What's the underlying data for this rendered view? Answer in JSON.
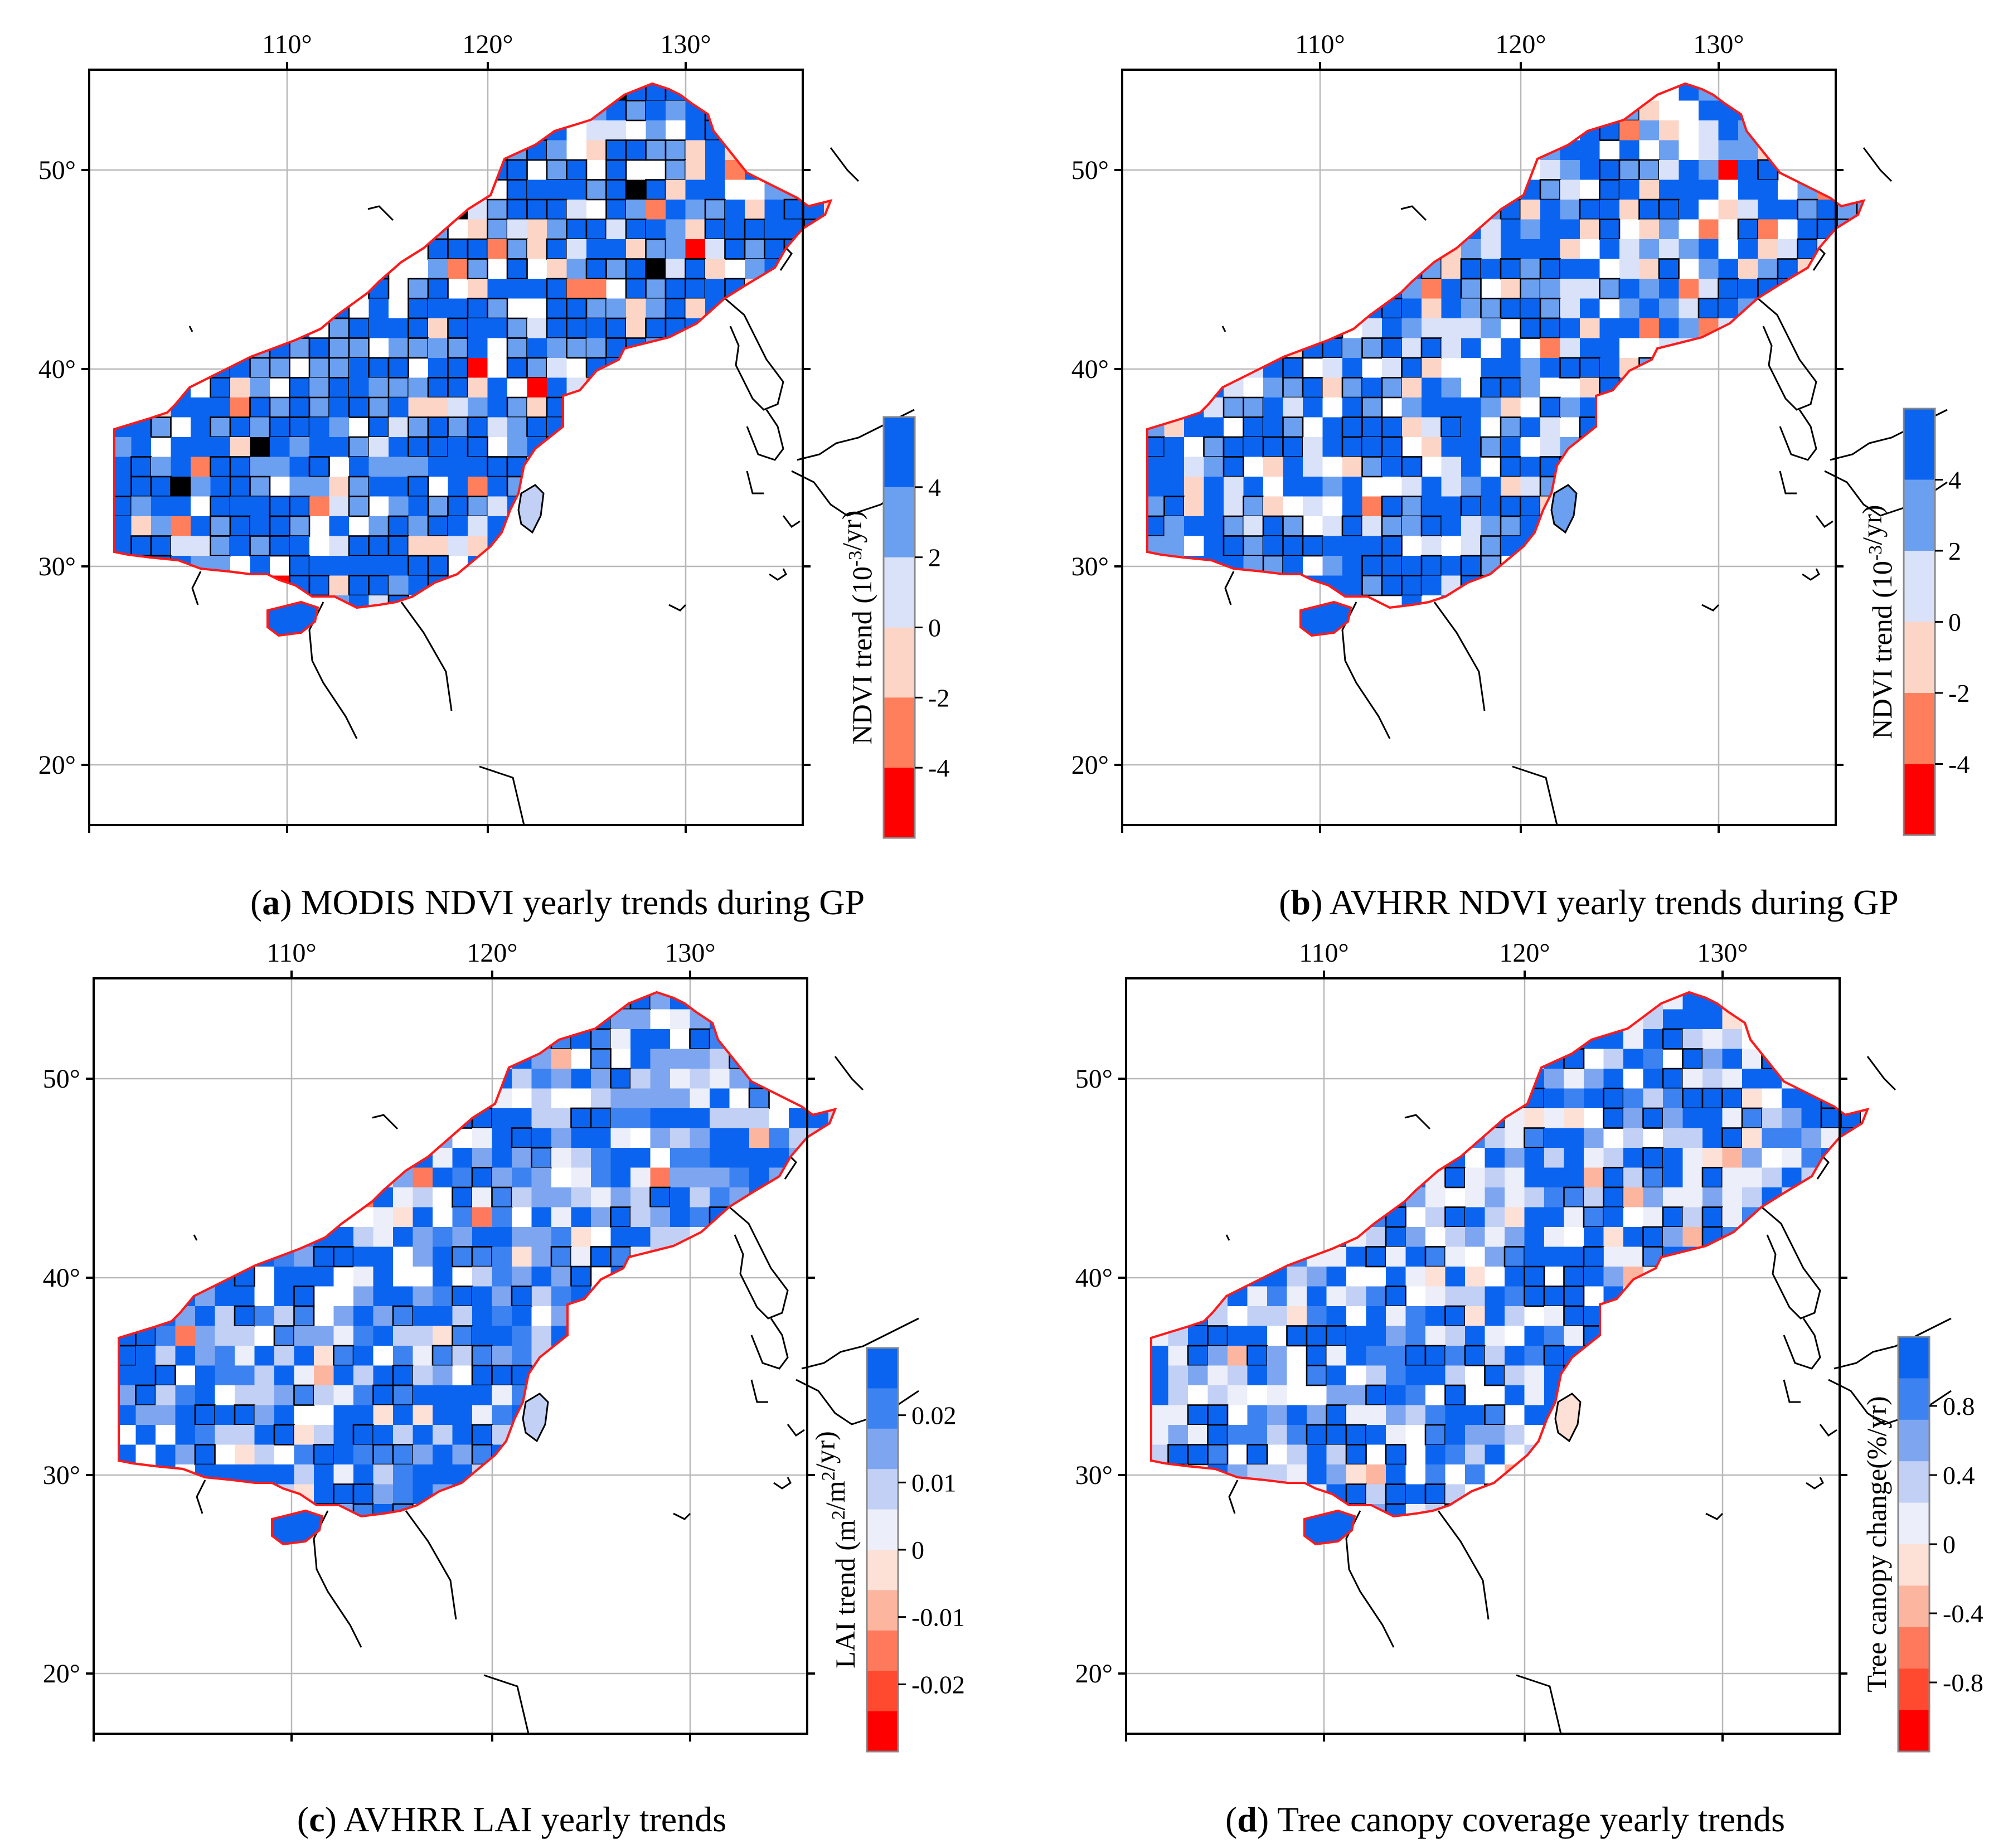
{
  "figure": {
    "panels": [
      {
        "id": "a",
        "letter": "a",
        "caption_open": "(",
        "caption_close": ")",
        "caption_rest": " MODIS NDVI yearly trends during GP",
        "colorbar": {
          "title": "NDVI trend (10",
          "title_sup": "-3",
          "title_tail": "/yr)",
          "labels": [
            "4",
            "2",
            "0",
            "-2",
            "-4"
          ],
          "colors": [
            "#0a64f0",
            "#6b9ff0",
            "#d9e2f8",
            "#fdd5c7",
            "#ff7f5c",
            "#ff0000"
          ]
        },
        "seed": 11,
        "weights": [
          0.52,
          0.25,
          0.08,
          0.1,
          0.03,
          0.01,
          0.01
        ],
        "sig_rate": 0.55
      },
      {
        "id": "b",
        "letter": "b",
        "caption_open": "(",
        "caption_close": ")",
        "caption_rest": " AVHRR NDVI yearly trends during GP",
        "colorbar": {
          "title": "NDVI trend (10",
          "title_sup": "-3",
          "title_tail": "/yr)",
          "labels": [
            "4",
            "2",
            "0",
            "-2",
            "-4"
          ],
          "colors": [
            "#0a64f0",
            "#6b9ff0",
            "#d9e2f8",
            "#fdd5c7",
            "#ff7f5c",
            "#ff0000"
          ]
        },
        "seed": 23,
        "weights": [
          0.4,
          0.28,
          0.15,
          0.12,
          0.04,
          0.01,
          0.0
        ],
        "sig_rate": 0.35
      },
      {
        "id": "c",
        "letter": "c",
        "caption_open": "(",
        "caption_close": ")",
        "caption_rest": " AVHRR LAI yearly trends",
        "colorbar": {
          "title": "LAI trend (m",
          "title_sup": "2",
          "title_mid": "/m",
          "title_sup2": "2",
          "title_tail": "/yr)",
          "labels": [
            "0.02",
            "0.01",
            "0",
            "-0.01",
            "-0.02"
          ],
          "colors": [
            "#0a64f0",
            "#3c82f0",
            "#7ea6f0",
            "#c2d0f5",
            "#eceff9",
            "#fde0d6",
            "#fcb59f",
            "#ff7a5c",
            "#ff4a30",
            "#ff0000"
          ]
        },
        "seed": 37,
        "weights": [
          0.3,
          0.2,
          0.18,
          0.15,
          0.1,
          0.05,
          0.01,
          0.01,
          0.0,
          0.0
        ],
        "sig_rate": 0.25
      },
      {
        "id": "d",
        "letter": "d",
        "caption_open": "(",
        "caption_close": ")",
        "caption_rest": " Tree canopy coverage yearly trends",
        "colorbar": {
          "title": "Tree canopy change(%/yr)",
          "labels": [
            "0.8",
            "0.4",
            "0",
            "-0.4",
            "-0.8"
          ],
          "colors": [
            "#0a64f0",
            "#3c82f0",
            "#7ea6f0",
            "#c2d0f5",
            "#eceff9",
            "#fde0d6",
            "#fcb59f",
            "#ff7a5c",
            "#ff4a30",
            "#ff0000"
          ]
        },
        "seed": 53,
        "weights": [
          0.35,
          0.12,
          0.1,
          0.15,
          0.2,
          0.06,
          0.02,
          0.0,
          0.0,
          0.0
        ],
        "sig_rate": 0.4
      }
    ],
    "longitude_labels": [
      "110°",
      "120°",
      "130°"
    ],
    "latitude_labels": [
      "50°",
      "40°",
      "30°",
      "20°"
    ]
  }
}
